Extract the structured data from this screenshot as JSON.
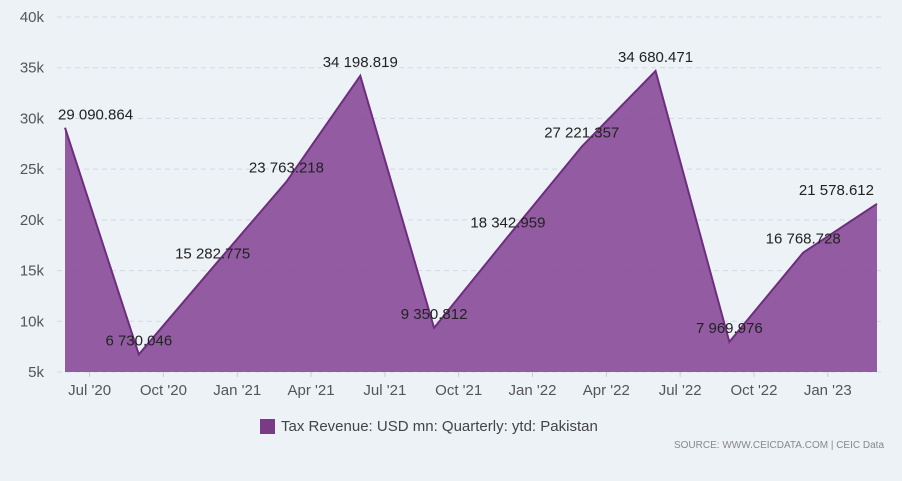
{
  "chart_data": {
    "type": "area",
    "title": "",
    "xlabel": "",
    "ylabel": "",
    "ylim": [
      5000,
      40000
    ],
    "yticks": [
      5000,
      10000,
      15000,
      20000,
      25000,
      30000,
      35000,
      40000
    ],
    "ytick_labels": [
      "5k",
      "10k",
      "15k",
      "20k",
      "25k",
      "30k",
      "35k",
      "40k"
    ],
    "x_tick_labels": [
      "Jul '20",
      "Oct '20",
      "Jan '21",
      "Apr '21",
      "Jul '21",
      "Oct '21",
      "Jan '22",
      "Apr '22",
      "Jul '22",
      "Oct '22",
      "Jan '23"
    ],
    "x": [
      "2020-06",
      "2020-09",
      "2020-12",
      "2021-03",
      "2021-06",
      "2021-09",
      "2021-12",
      "2022-03",
      "2022-06",
      "2022-09",
      "2022-12",
      "2023-03"
    ],
    "series": [
      {
        "name": "Tax Revenue: USD mn: Quarterly: ytd: Pakistan",
        "values": [
          29090.864,
          6730.046,
          15282.775,
          23763.218,
          34198.819,
          9350.812,
          18342.959,
          27221.357,
          34680.471,
          7969.976,
          16768.728,
          21578.612
        ],
        "labels": [
          "29 090.864",
          "6 730.046",
          "15 282.775",
          "23 763.218",
          "34 198.819",
          "9 350.812",
          "18 342.959",
          "27 221.357",
          "34 680.471",
          "7 969.976",
          "16 768.728",
          "21 578.612"
        ]
      }
    ],
    "grid": true,
    "colors": {
      "fill": "#8b4f9a",
      "line": "#6e2d7e",
      "legend_swatch": "#7a3a86"
    }
  },
  "legend": {
    "label": "Tax Revenue: USD mn: Quarterly: ytd: Pakistan"
  },
  "source": {
    "text": "SOURCE: WWW.CEICDATA.COM | CEIC Data"
  }
}
